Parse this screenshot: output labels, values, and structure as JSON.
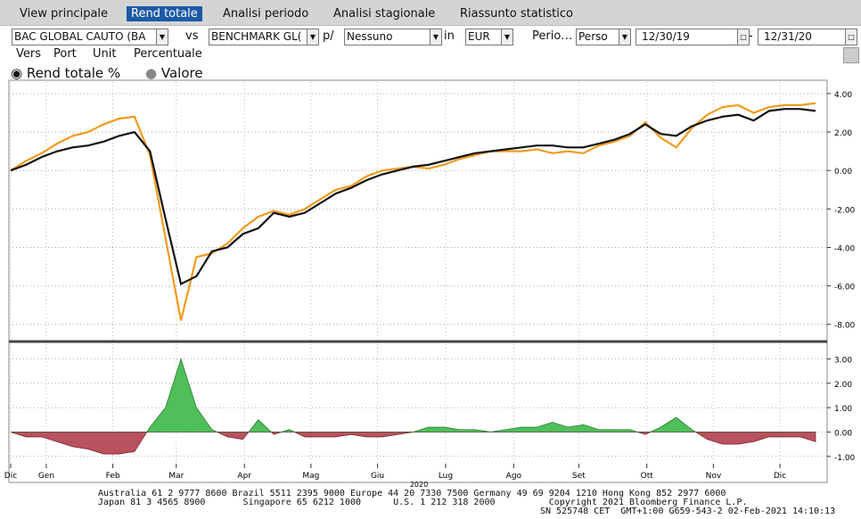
{
  "tabs": [
    "View principale",
    "Rend totale",
    "Analisi periodo",
    "Analisi stagionale",
    "Riassunto statistico"
  ],
  "controls": {
    "security": "BAC GLOBAL CAUTO (BA",
    "vs": "vs",
    "benchmark": "BENCHMARK GL(",
    "per_label": "p/",
    "per_value": "Nessuno",
    "in_label": "in",
    "currency": "EUR",
    "period_label": "Perio…",
    "period_value": "Perso",
    "start": "12/30/19",
    "dash": "-",
    "end": "12/31/20"
  },
  "options": [
    "Vers",
    "Port",
    "Unit",
    "Percentuale"
  ],
  "radios": [
    "Rend totale %",
    "Valore"
  ],
  "year_label": "2020",
  "footer": [
    "Australia 61 2 9777 8600 Brazil 5511 2395 9000 Europe 44 20 7330 7500 Germany 49 69 9204 1210 Hong Kong 852 2977 6000",
    "Japan 81 3 4565 8900       Singapore 65 6212 1000      U.S. 1 212 318 2000          Copyright 2021 Bloomberg Finance L.P.",
    "SN 525748 CET  GMT+1:00 G659-543-2 02-Feb-2021 14:10:13"
  ],
  "chart_data": [
    {
      "type": "line",
      "xlim": [
        0,
        52
      ],
      "ylim": [
        -8.8,
        4.6
      ],
      "yticks": [
        {
          "value": 4,
          "label": "4.00"
        },
        {
          "value": 2,
          "label": "2.00"
        },
        {
          "value": 0,
          "label": "0.00"
        },
        {
          "value": -2,
          "label": "-2.00"
        },
        {
          "value": -4,
          "label": "-4.00"
        },
        {
          "value": -6,
          "label": "-6.00"
        },
        {
          "value": -8,
          "label": "-8.00"
        }
      ],
      "grid": true,
      "series": [
        {
          "name": "BENCHMARK",
          "color": "#f39a1e",
          "values": [
            0,
            0.5,
            0.9,
            1.4,
            1.8,
            2.0,
            2.4,
            2.7,
            2.8,
            0.8,
            -3.5,
            -7.8,
            -4.5,
            -4.3,
            -3.8,
            -3.0,
            -2.4,
            -2.1,
            -2.3,
            -2.0,
            -1.5,
            -1.0,
            -0.8,
            -0.3,
            0.0,
            0.1,
            0.2,
            0.1,
            0.3,
            0.6,
            0.8,
            1.0,
            1.0,
            1.0,
            1.1,
            0.9,
            1.0,
            0.9,
            1.3,
            1.5,
            1.8,
            2.5,
            1.7,
            1.2,
            2.2,
            2.9,
            3.3,
            3.4,
            3.0,
            3.3,
            3.4,
            3.4,
            3.5
          ]
        },
        {
          "name": "BAC GLOBAL CAUTO",
          "color": "#111111",
          "values": [
            0,
            0.3,
            0.7,
            1.0,
            1.2,
            1.3,
            1.5,
            1.8,
            2.0,
            1.0,
            -2.5,
            -5.9,
            -5.5,
            -4.2,
            -4.0,
            -3.3,
            -3.0,
            -2.2,
            -2.4,
            -2.2,
            -1.7,
            -1.2,
            -0.9,
            -0.5,
            -0.2,
            0.0,
            0.2,
            0.3,
            0.5,
            0.7,
            0.9,
            1.0,
            1.1,
            1.2,
            1.3,
            1.3,
            1.2,
            1.2,
            1.4,
            1.6,
            1.9,
            2.4,
            1.9,
            1.8,
            2.3,
            2.6,
            2.8,
            2.9,
            2.6,
            3.1,
            3.2,
            3.2,
            3.1
          ]
        }
      ]
    },
    {
      "type": "area",
      "xlim": [
        0,
        52
      ],
      "ylim": [
        -1.3,
        3.6
      ],
      "yticks": [
        {
          "value": 3,
          "label": "3.00"
        },
        {
          "value": 2,
          "label": "2.00"
        },
        {
          "value": 1,
          "label": "1.00"
        },
        {
          "value": 0,
          "label": "0.00"
        },
        {
          "value": -1,
          "label": "-1.00"
        }
      ],
      "grid": true,
      "positive_color": "#4fbf5a",
      "negative_color": "#b9515f",
      "values": [
        0,
        -0.2,
        -0.2,
        -0.4,
        -0.6,
        -0.7,
        -0.9,
        -0.9,
        -0.8,
        0.2,
        1.0,
        3.0,
        1.0,
        0.1,
        -0.2,
        -0.3,
        0.5,
        -0.1,
        0.1,
        -0.2,
        -0.2,
        -0.2,
        -0.1,
        -0.2,
        -0.2,
        -0.1,
        0,
        0.2,
        0.2,
        0.1,
        0.1,
        0,
        0.1,
        0.2,
        0.2,
        0.4,
        0.2,
        0.3,
        0.1,
        0.1,
        0.1,
        -0.1,
        0.2,
        0.6,
        0.1,
        -0.3,
        -0.5,
        -0.5,
        -0.4,
        -0.2,
        -0.2,
        -0.2,
        -0.4
      ],
      "xticks": [
        {
          "value": 0,
          "label": "Dic"
        },
        {
          "value": 2.3,
          "label": "Gen"
        },
        {
          "value": 6.6,
          "label": "Feb"
        },
        {
          "value": 10.7,
          "label": "Mar"
        },
        {
          "value": 15.1,
          "label": "Apr"
        },
        {
          "value": 19.4,
          "label": "Mag"
        },
        {
          "value": 23.7,
          "label": "Giu"
        },
        {
          "value": 28.1,
          "label": "Lug"
        },
        {
          "value": 32.5,
          "label": "Ago"
        },
        {
          "value": 36.7,
          "label": "Set"
        },
        {
          "value": 41.1,
          "label": "Ott"
        },
        {
          "value": 45.4,
          "label": "Nov"
        },
        {
          "value": 49.7,
          "label": "Dic"
        }
      ]
    }
  ]
}
